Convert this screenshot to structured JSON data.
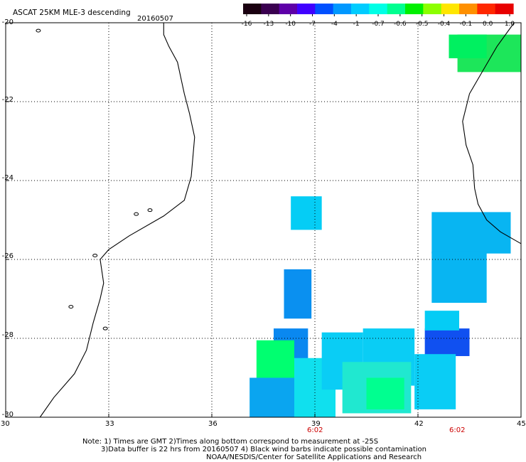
{
  "title": "ASCAT 25KM MLE-3 descending",
  "date": "20160507",
  "colorbar": {
    "labels": [
      "-16",
      "-13",
      "-10",
      "-7",
      "-4",
      "-1",
      "-0.7",
      "-0.6",
      "-0.5",
      "-0.4",
      "-0.1",
      "0.0",
      "1.0"
    ],
    "colors": [
      "#1a0010",
      "#3a0050",
      "#5e00a8",
      "#4000ff",
      "#0050ff",
      "#0098ff",
      "#00ccff",
      "#00ffe6",
      "#00ff90",
      "#00f000",
      "#8cff00",
      "#ffe600",
      "#ff9000",
      "#ff2800",
      "#e80000"
    ]
  },
  "axes": {
    "x_ticks": [
      "30",
      "33",
      "36",
      "39",
      "42",
      "45"
    ],
    "y_ticks": [
      "-20",
      "-22",
      "-24",
      "-26",
      "-28",
      "-30"
    ],
    "time_labels": [
      "6:02",
      "6:02"
    ]
  },
  "notes": {
    "line1": "Note: 1) Times are GMT 2)Times along bottom correspond to measurement at -25S",
    "line2": "3)Data buffer is 22 hrs from 20160507 4) Black wind barbs indicate possible contamination",
    "line3": "NOAA/NESDIS/Center for Satellite Applications and Research"
  },
  "map": {
    "lon_range": [
      30,
      45
    ],
    "lat_range": [
      -30,
      -20
    ],
    "grid": "dotted",
    "coast_west": [
      [
        34.6,
        -20.0
      ],
      [
        34.6,
        -20.3
      ],
      [
        34.75,
        -20.6
      ],
      [
        35.0,
        -21.0
      ],
      [
        35.1,
        -21.4
      ],
      [
        35.2,
        -21.8
      ],
      [
        35.35,
        -22.3
      ],
      [
        35.5,
        -22.9
      ],
      [
        35.45,
        -23.4
      ],
      [
        35.4,
        -23.9
      ],
      [
        35.2,
        -24.5
      ],
      [
        34.6,
        -24.9
      ],
      [
        33.6,
        -25.4
      ],
      [
        33.0,
        -25.75
      ],
      [
        32.75,
        -26.0
      ],
      [
        32.85,
        -26.6
      ],
      [
        32.75,
        -27.0
      ],
      [
        32.55,
        -27.6
      ],
      [
        32.35,
        -28.3
      ],
      [
        32.0,
        -28.9
      ],
      [
        31.4,
        -29.5
      ],
      [
        31.0,
        -30.0
      ]
    ],
    "coast_east": [
      [
        44.8,
        -20.0
      ],
      [
        44.3,
        -20.6
      ],
      [
        43.9,
        -21.2
      ],
      [
        43.5,
        -21.8
      ],
      [
        43.3,
        -22.5
      ],
      [
        43.4,
        -23.1
      ],
      [
        43.6,
        -23.6
      ],
      [
        43.65,
        -24.2
      ],
      [
        43.75,
        -24.6
      ],
      [
        44.0,
        -25.0
      ],
      [
        44.4,
        -25.3
      ],
      [
        45.0,
        -25.6
      ]
    ],
    "swath_cells": [
      {
        "lon0": 38.3,
        "lon1": 39.2,
        "lat0": -24.4,
        "lat1": -25.25,
        "color": "#05cdf5"
      },
      {
        "lon0": 38.1,
        "lon1": 38.9,
        "lat0": -26.25,
        "lat1": -27.5,
        "color": "#0a90f0"
      },
      {
        "lon0": 37.8,
        "lon1": 38.8,
        "lat0": -27.75,
        "lat1": -28.55,
        "color": "#0a88f0"
      },
      {
        "lon0": 37.3,
        "lon1": 38.4,
        "lat0": -28.05,
        "lat1": -29.2,
        "color": "#00ff70"
      },
      {
        "lon0": 37.1,
        "lon1": 38.6,
        "lat0": -29.0,
        "lat1": -30.0,
        "color": "#0aa5f0"
      },
      {
        "lon0": 38.4,
        "lon1": 39.6,
        "lat0": -28.5,
        "lat1": -30.0,
        "color": "#10e0ee"
      },
      {
        "lon0": 39.2,
        "lon1": 40.4,
        "lat0": -27.85,
        "lat1": -29.3,
        "color": "#0acdf5"
      },
      {
        "lon0": 40.4,
        "lon1": 41.9,
        "lat0": -27.75,
        "lat1": -29.2,
        "color": "#0acdf5"
      },
      {
        "lon0": 39.8,
        "lon1": 41.8,
        "lat0": -28.6,
        "lat1": -29.9,
        "color": "#20e8d0"
      },
      {
        "lon0": 40.5,
        "lon1": 41.6,
        "lat0": -29.0,
        "lat1": -29.8,
        "color": "#00ff90"
      },
      {
        "lon0": 42.2,
        "lon1": 43.5,
        "lat0": -27.75,
        "lat1": -28.45,
        "color": "#1050f0"
      },
      {
        "lon0": 42.2,
        "lon1": 43.2,
        "lat0": -27.3,
        "lat1": -27.8,
        "color": "#05ccf5"
      },
      {
        "lon0": 41.9,
        "lon1": 43.1,
        "lat0": -28.4,
        "lat1": -29.8,
        "color": "#0acdf5"
      },
      {
        "lon0": 42.4,
        "lon1": 44.7,
        "lat0": -24.8,
        "lat1": -25.85,
        "color": "#08b5f2"
      },
      {
        "lon0": 42.4,
        "lon1": 44.0,
        "lat0": -25.8,
        "lat1": -27.1,
        "color": "#08b5f2"
      },
      {
        "lon0": 43.15,
        "lon1": 45.0,
        "lat0": -20.3,
        "lat1": -21.25,
        "color": "#1de65a"
      },
      {
        "lon0": 42.9,
        "lon1": 44.0,
        "lat0": -20.3,
        "lat1": -20.9,
        "color": "#00f060"
      }
    ]
  }
}
